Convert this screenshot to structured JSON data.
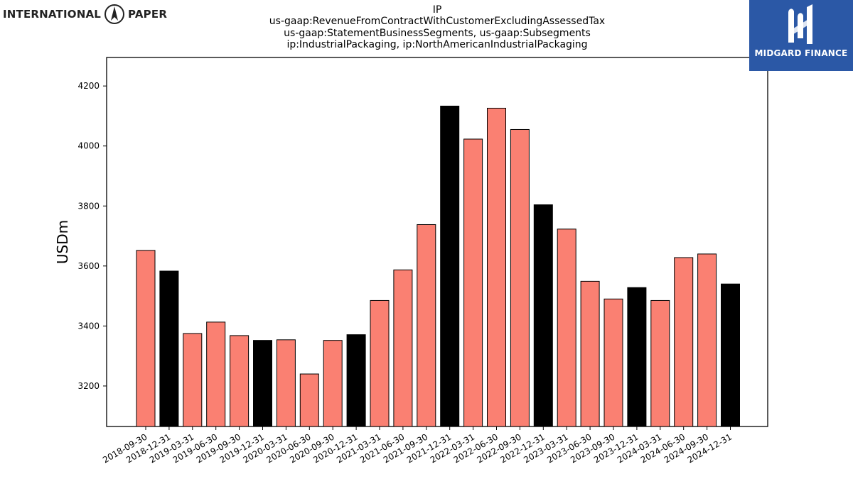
{
  "header": {
    "left_logo_text": [
      "INTERNATIONAL",
      "PAPER"
    ],
    "right_logo_text": "MIDGARD FINANCE"
  },
  "colors": {
    "bar_default": "#fa8072",
    "bar_year_end": "#000000",
    "logo_right_bg": "#2b58a6"
  },
  "icons": {
    "left_logo": "compass-icon",
    "right_logo": "midgard-mark-icon"
  },
  "chart_data": {
    "type": "bar",
    "title_lines": [
      "IP",
      "us-gaap:RevenueFromContractWithCustomerExcludingAssessedTax",
      "us-gaap:StatementBusinessSegments, us-gaap:Subsegments",
      "ip:IndustrialPackaging, ip:NorthAmericanIndustrialPackaging"
    ],
    "ylabel": "USDm",
    "xlabel": "",
    "ylim": [
      3065,
      4295
    ],
    "yticks": [
      3200,
      3400,
      3600,
      3800,
      4000,
      4200
    ],
    "categories": [
      "2018-09-30",
      "2018-12-31",
      "2019-03-31",
      "2019-06-30",
      "2019-09-30",
      "2019-12-31",
      "2020-03-31",
      "2020-06-30",
      "2020-09-30",
      "2020-12-31",
      "2021-03-31",
      "2021-06-30",
      "2021-09-30",
      "2021-12-31",
      "2022-03-31",
      "2022-06-30",
      "2022-09-30",
      "2022-12-31",
      "2023-03-31",
      "2023-06-30",
      "2023-09-30",
      "2023-12-31",
      "2024-03-31",
      "2024-06-30",
      "2024-09-30",
      "2024-12-31"
    ],
    "values": [
      3652,
      3583,
      3375,
      3413,
      3368,
      3352,
      3354,
      3240,
      3352,
      3371,
      3485,
      3587,
      3738,
      4133,
      4023,
      4126,
      4055,
      3804,
      3723,
      3549,
      3490,
      3528,
      3485,
      3628,
      3640,
      3540
    ],
    "year_end": [
      false,
      true,
      false,
      false,
      false,
      true,
      false,
      false,
      false,
      true,
      false,
      false,
      false,
      true,
      false,
      false,
      false,
      true,
      false,
      false,
      false,
      true,
      false,
      false,
      false,
      true
    ],
    "grid": false,
    "legend": "none"
  }
}
